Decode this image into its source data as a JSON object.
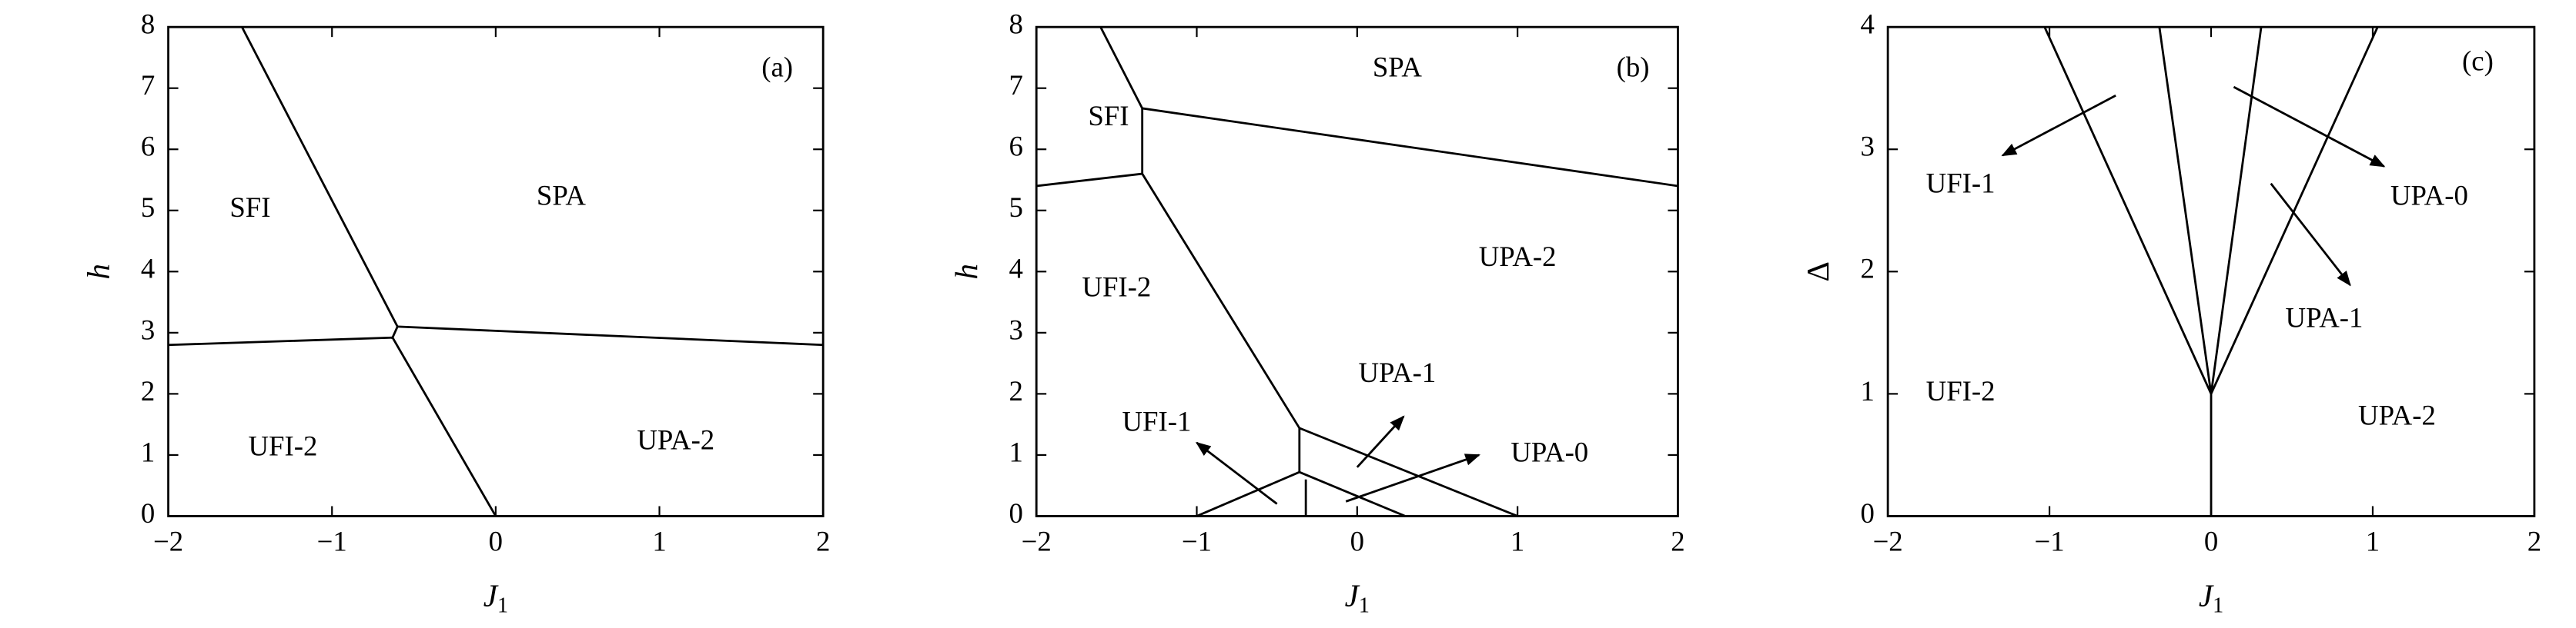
{
  "chart_data": [
    {
      "type": "line",
      "color": "#000000",
      "ylabel": "h",
      "xlabel": "J",
      "xlabel_sub": "1",
      "xlim": [
        -2,
        2
      ],
      "ylim": [
        0,
        8
      ],
      "xticks": [
        {
          "value": -2,
          "label": "−2"
        },
        {
          "value": -1,
          "label": "−1"
        },
        0,
        1,
        2
      ],
      "yticks": [
        0,
        1,
        2,
        3,
        4,
        5,
        6,
        7,
        8
      ],
      "series": [
        {
          "x": [
            -1.55,
            -0.6,
            -0.63,
            0
          ],
          "values": [
            8,
            3.1,
            2.92,
            0
          ]
        },
        {
          "x": [
            -2,
            -0.63
          ],
          "values": [
            2.8,
            2.92
          ]
        },
        {
          "x": [
            -0.6,
            2
          ],
          "values": [
            3.1,
            2.8
          ]
        }
      ],
      "annotations": [
        {
          "text": "(a)",
          "x": 1.72,
          "y": 7.3
        },
        {
          "text": "SFI",
          "x": -1.5,
          "y": 5
        },
        {
          "text": "SPA",
          "x": 0.4,
          "y": 5.2
        },
        {
          "text": "UFI-2",
          "x": -1.3,
          "y": 1.1
        },
        {
          "text": "UPA-2",
          "x": 1.1,
          "y": 1.2
        }
      ]
    },
    {
      "type": "line",
      "color": "#000000",
      "ylabel": "h",
      "xlabel": "J",
      "xlabel_sub": "1",
      "xlim": [
        -2,
        2
      ],
      "ylim": [
        0,
        8
      ],
      "xticks": [
        {
          "value": -2,
          "label": "−2"
        },
        {
          "value": -1,
          "label": "−1"
        },
        0,
        1,
        2
      ],
      "yticks": [
        0,
        1,
        2,
        3,
        4,
        5,
        6,
        7,
        8
      ],
      "series": [
        {
          "x": [
            -1.6,
            -1.34,
            -1.34,
            -0.36,
            1
          ],
          "values": [
            8,
            6.67,
            5.6,
            1.44,
            0
          ]
        },
        {
          "x": [
            -2,
            -1.34
          ],
          "values": [
            5.4,
            5.6
          ]
        },
        {
          "x": [
            -1.34,
            2
          ],
          "values": [
            6.67,
            5.4
          ]
        },
        {
          "x": [
            -0.36,
            -0.36
          ],
          "values": [
            1.44,
            0.72
          ]
        },
        {
          "x": [
            -1,
            -0.36,
            0.3
          ],
          "values": [
            0,
            0.72,
            0
          ]
        },
        {
          "x": [
            -0.32,
            -0.32
          ],
          "values": [
            0.6,
            0
          ]
        },
        {
          "x": [
            -0.5,
            -1
          ],
          "values": [
            0.2,
            1.2
          ],
          "arrow": true
        },
        {
          "x": [
            0,
            0.29
          ],
          "values": [
            0.8,
            1.63
          ],
          "arrow": true
        },
        {
          "x": [
            -0.07,
            0.76
          ],
          "values": [
            0.24,
            1
          ],
          "arrow": true
        }
      ],
      "annotations": [
        {
          "text": "(b)",
          "x": 1.72,
          "y": 7.3
        },
        {
          "text": "SFI",
          "x": -1.55,
          "y": 6.5
        },
        {
          "text": "SPA",
          "x": 0.25,
          "y": 7.3
        },
        {
          "text": "UFI-2",
          "x": -1.5,
          "y": 3.7
        },
        {
          "text": "UPA-2",
          "x": 1.0,
          "y": 4.2
        },
        {
          "text": "UFI-1",
          "x": -1.25,
          "y": 1.5
        },
        {
          "text": "UPA-1",
          "x": 0.25,
          "y": 2.3
        },
        {
          "text": "UPA-0",
          "x": 1.2,
          "y": 1.0
        }
      ]
    },
    {
      "type": "line",
      "color": "#000000",
      "ylabel": "Δ",
      "xlabel": "J",
      "xlabel_sub": "1",
      "xlim": [
        -2,
        2
      ],
      "ylim": [
        0,
        4
      ],
      "xticks": [
        {
          "value": -2,
          "label": "−2"
        },
        {
          "value": -1,
          "label": "−1"
        },
        0,
        1,
        2
      ],
      "yticks": [
        0,
        1,
        2,
        3,
        4
      ],
      "series": [
        {
          "x": [
            -1.03,
            0,
            -0.32
          ],
          "values": [
            4,
            1,
            4
          ]
        },
        {
          "x": [
            0.31,
            0,
            1.03
          ],
          "values": [
            4,
            1,
            4
          ]
        },
        {
          "x": [
            0,
            0
          ],
          "values": [
            1,
            0
          ]
        },
        {
          "x": [
            -0.59,
            -1.29
          ],
          "values": [
            3.44,
            2.95
          ],
          "arrow": true
        },
        {
          "x": [
            0.14,
            1.07
          ],
          "values": [
            3.51,
            2.86
          ],
          "arrow": true
        },
        {
          "x": [
            0.37,
            0.86
          ],
          "values": [
            2.72,
            1.89
          ],
          "arrow": true
        }
      ],
      "annotations": [
        {
          "text": "(c)",
          "x": 1.65,
          "y": 3.7
        },
        {
          "text": "UFI-1",
          "x": -1.55,
          "y": 2.7
        },
        {
          "text": "UPA-0",
          "x": 1.35,
          "y": 2.6
        },
        {
          "text": "UPA-1",
          "x": 0.7,
          "y": 1.6
        },
        {
          "text": "UFI-2",
          "x": -1.55,
          "y": 1.0
        },
        {
          "text": "UPA-2",
          "x": 1.15,
          "y": 0.8
        }
      ]
    }
  ]
}
